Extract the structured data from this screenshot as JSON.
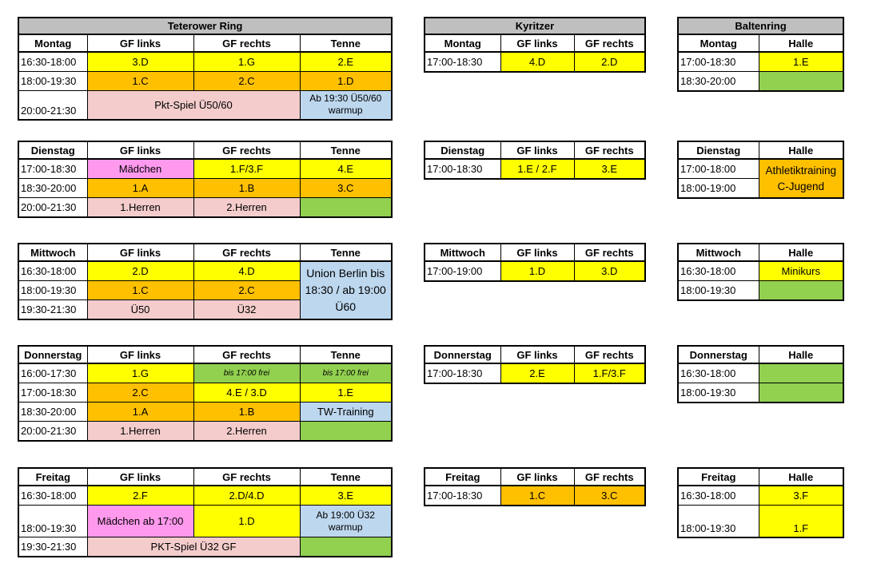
{
  "venues": {
    "teterower": "Teterower Ring",
    "kyritzer": "Kyritzer",
    "baltenring": "Baltenring"
  },
  "cols": {
    "gf_links": "GF links",
    "gf_rechts": "GF rechts",
    "tenne": "Tenne",
    "halle": "Halle"
  },
  "days": {
    "mo": "Montag",
    "di": "Dienstag",
    "mi": "Mittwoch",
    "do": "Donnerstag",
    "fr": "Freitag"
  },
  "t": {
    "montag": {
      "r1": {
        "time": "16:30-18:00",
        "a": "3.D",
        "b": "1.G",
        "c": "2.E"
      },
      "r2": {
        "time": "18:00-19:30",
        "a": "1.C",
        "b": "2.C",
        "c": "1.D"
      },
      "r3": {
        "time": "20:00-21:30",
        "ab": "Pkt-Spiel Ü50/60",
        "c": "Ab 19:30 Ü50/60 warmup"
      }
    },
    "dienstag": {
      "r1": {
        "time": "17:00-18:30",
        "a": "Mädchen",
        "b": "1.F/3.F",
        "c": "4.E"
      },
      "r2": {
        "time": "18:30-20:00",
        "a": "1.A",
        "b": "1.B",
        "c": "3.C"
      },
      "r3": {
        "time": "20:00-21:30",
        "a": "1.Herren",
        "b": "2.Herren",
        "c": ""
      }
    },
    "mittwoch": {
      "r1": {
        "time": "16:30-18:00",
        "a": "2.D",
        "b": "4.D"
      },
      "r2": {
        "time": "18:00-19:30",
        "a": "1.C",
        "b": "2.C"
      },
      "r3": {
        "time": "19:30-21:30",
        "a": "Ü50",
        "b": "Ü32"
      },
      "tenne": "Union Berlin bis 18:30 / ab 19:00 Ü60"
    },
    "donnerstag": {
      "r1": {
        "time": "16:00-17:30",
        "a": "1.G",
        "b": "bis 17:00 frei",
        "c": "bis 17:00 frei"
      },
      "r2": {
        "time": "17:00-18:30",
        "a": "2.C",
        "b": "4.E / 3.D",
        "c": "1.E"
      },
      "r3": {
        "time": "18:30-20:00",
        "a": "1.A",
        "b": "1.B",
        "c": "TW-Training"
      },
      "r4": {
        "time": "20:00-21:30",
        "a": "1.Herren",
        "b": "2.Herren",
        "c": ""
      }
    },
    "freitag": {
      "r1": {
        "time": "16:30-18:00",
        "a": "2.F",
        "b": "2.D/4.D",
        "c": "3.E"
      },
      "r2": {
        "time": "18:00-19:30",
        "a": "Mädchen ab 17:00",
        "b": "1.D",
        "c": "Ab 19:00 Ü32 warmup"
      },
      "r3": {
        "time": "19:30-21:30",
        "ab": "PKT-Spiel Ü32 GF",
        "c": ""
      }
    }
  },
  "k": {
    "montag": {
      "time": "17:00-18:30",
      "a": "4.D",
      "b": "2.D"
    },
    "dienstag": {
      "time": "17:00-18:30",
      "a": "1.E / 2.F",
      "b": "3.E"
    },
    "mittwoch": {
      "time": "17:00-19:00",
      "a": "1.D",
      "b": "3.D"
    },
    "donnerstag": {
      "time": "17:00-18:30",
      "a": "2.E",
      "b": "1.F/3.F"
    },
    "freitag": {
      "time": "17:00-18:30",
      "a": "1.C",
      "b": "3.C"
    }
  },
  "b": {
    "montag": {
      "r1": {
        "time": "17:00-18:30",
        "h": "1.E"
      },
      "r2": {
        "time": "18:30-20:00",
        "h": ""
      }
    },
    "dienstag": {
      "r1": {
        "time": "17:00-18:00"
      },
      "r2": {
        "time": "18:00-19:00"
      },
      "h": "Athletiktraining C-Jugend"
    },
    "mittwoch": {
      "r1": {
        "time": "16:30-18:00",
        "h": "Minikurs"
      },
      "r2": {
        "time": "18:00-19:30",
        "h": ""
      }
    },
    "donnerstag": {
      "r1": {
        "time": "16:30-18:00",
        "h": ""
      },
      "r2": {
        "time": "18:00-19:30",
        "h": ""
      }
    },
    "freitag": {
      "r1": {
        "time": "16:30-18:00",
        "h": "3.F"
      },
      "r2": {
        "time": "18:00-19:30",
        "h": "1.F"
      }
    }
  },
  "colors": {
    "yellow": "#ffff00",
    "orange": "#ffc000",
    "peach": "#f4cccc",
    "blue": "#bdd7ee",
    "green": "#92d050",
    "pink": "#ff99ee",
    "title_gray": "#bfbfbf"
  }
}
